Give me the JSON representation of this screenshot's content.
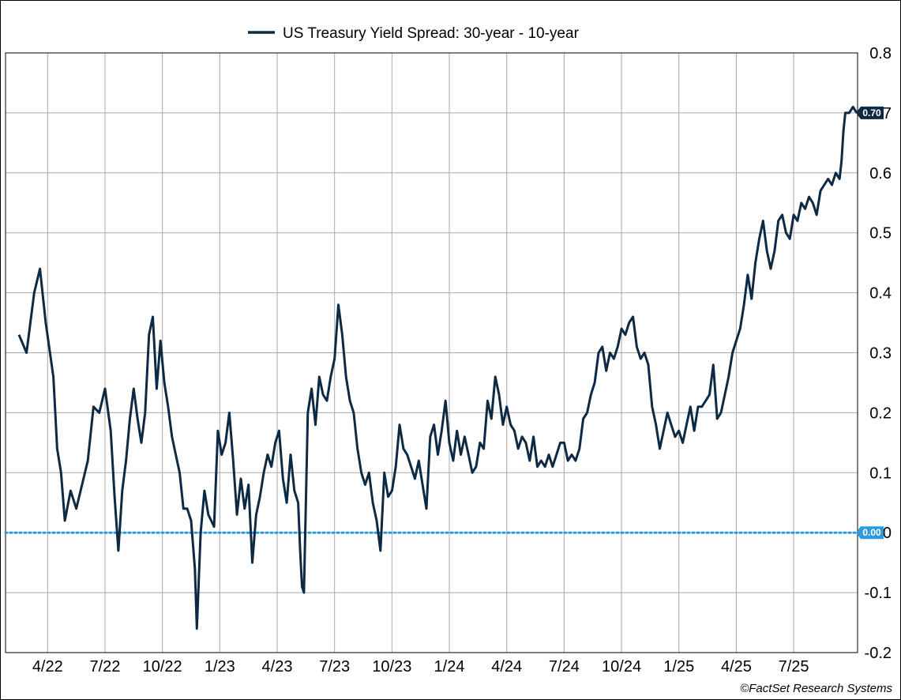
{
  "chart_data": {
    "type": "line",
    "title": "",
    "legend": {
      "label": "US Treasury Yield Spread: 30-year - 10-year",
      "position": "top-center"
    },
    "xlabel": "",
    "ylabel": "",
    "x_ticks": [
      "4/22",
      "7/22",
      "10/22",
      "1/23",
      "4/23",
      "7/23",
      "10/23",
      "1/24",
      "4/24",
      "7/24",
      "10/24",
      "1/25",
      "4/25",
      "7/25"
    ],
    "y_ticks": [
      "0.8",
      "0.7",
      "0.6",
      "0.5",
      "0.4",
      "0.3",
      "0.2",
      "0.1",
      "0",
      "-0.1",
      "-0.2"
    ],
    "ylim": [
      -0.2,
      0.8
    ],
    "grid": true,
    "series": [
      {
        "name": "US Treasury Yield Spread: 30-year - 10-year",
        "color": "#0d2a45",
        "points": [
          [
            0.0,
            0.33
          ],
          [
            0.2,
            0.3
          ],
          [
            0.4,
            0.4
          ],
          [
            0.55,
            0.44
          ],
          [
            0.7,
            0.35
          ],
          [
            0.9,
            0.26
          ],
          [
            1.0,
            0.14
          ],
          [
            1.1,
            0.1
          ],
          [
            1.2,
            0.02
          ],
          [
            1.35,
            0.07
          ],
          [
            1.5,
            0.04
          ],
          [
            1.65,
            0.08
          ],
          [
            1.8,
            0.12
          ],
          [
            1.95,
            0.21
          ],
          [
            2.1,
            0.2
          ],
          [
            2.25,
            0.24
          ],
          [
            2.4,
            0.17
          ],
          [
            2.5,
            0.06
          ],
          [
            2.6,
            -0.03
          ],
          [
            2.7,
            0.07
          ],
          [
            2.8,
            0.12
          ],
          [
            2.9,
            0.19
          ],
          [
            3.0,
            0.24
          ],
          [
            3.1,
            0.19
          ],
          [
            3.2,
            0.15
          ],
          [
            3.3,
            0.2
          ],
          [
            3.4,
            0.33
          ],
          [
            3.5,
            0.36
          ],
          [
            3.6,
            0.24
          ],
          [
            3.7,
            0.32
          ],
          [
            3.8,
            0.25
          ],
          [
            3.9,
            0.21
          ],
          [
            4.0,
            0.16
          ],
          [
            4.1,
            0.13
          ],
          [
            4.2,
            0.1
          ],
          [
            4.3,
            0.04
          ],
          [
            4.4,
            0.04
          ],
          [
            4.5,
            0.02
          ],
          [
            4.6,
            -0.06
          ],
          [
            4.65,
            -0.16
          ],
          [
            4.75,
            0.0
          ],
          [
            4.85,
            0.07
          ],
          [
            4.95,
            0.03
          ],
          [
            5.1,
            0.01
          ],
          [
            5.2,
            0.17
          ],
          [
            5.3,
            0.13
          ],
          [
            5.4,
            0.15
          ],
          [
            5.5,
            0.2
          ],
          [
            5.6,
            0.12
          ],
          [
            5.7,
            0.03
          ],
          [
            5.8,
            0.09
          ],
          [
            5.9,
            0.04
          ],
          [
            6.0,
            0.08
          ],
          [
            6.1,
            -0.05
          ],
          [
            6.2,
            0.03
          ],
          [
            6.3,
            0.06
          ],
          [
            6.4,
            0.1
          ],
          [
            6.5,
            0.13
          ],
          [
            6.6,
            0.11
          ],
          [
            6.7,
            0.15
          ],
          [
            6.8,
            0.17
          ],
          [
            6.9,
            0.09
          ],
          [
            7.0,
            0.05
          ],
          [
            7.1,
            0.13
          ],
          [
            7.2,
            0.07
          ],
          [
            7.3,
            0.05
          ],
          [
            7.35,
            -0.03
          ],
          [
            7.4,
            -0.09
          ],
          [
            7.45,
            -0.1
          ],
          [
            7.55,
            0.2
          ],
          [
            7.65,
            0.24
          ],
          [
            7.75,
            0.18
          ],
          [
            7.85,
            0.26
          ],
          [
            7.95,
            0.23
          ],
          [
            8.05,
            0.22
          ],
          [
            8.15,
            0.26
          ],
          [
            8.25,
            0.29
          ],
          [
            8.35,
            0.38
          ],
          [
            8.45,
            0.33
          ],
          [
            8.55,
            0.26
          ],
          [
            8.65,
            0.22
          ],
          [
            8.75,
            0.2
          ],
          [
            8.85,
            0.14
          ],
          [
            8.95,
            0.1
          ],
          [
            9.05,
            0.08
          ],
          [
            9.15,
            0.1
          ],
          [
            9.25,
            0.05
          ],
          [
            9.35,
            0.02
          ],
          [
            9.45,
            -0.03
          ],
          [
            9.55,
            0.1
          ],
          [
            9.65,
            0.06
          ],
          [
            9.75,
            0.07
          ],
          [
            9.85,
            0.11
          ],
          [
            9.95,
            0.18
          ],
          [
            10.05,
            0.14
          ],
          [
            10.15,
            0.13
          ],
          [
            10.25,
            0.11
          ],
          [
            10.35,
            0.09
          ],
          [
            10.45,
            0.12
          ],
          [
            10.55,
            0.08
          ],
          [
            10.65,
            0.04
          ],
          [
            10.75,
            0.16
          ],
          [
            10.85,
            0.18
          ],
          [
            10.95,
            0.13
          ],
          [
            11.05,
            0.17
          ],
          [
            11.15,
            0.22
          ],
          [
            11.25,
            0.15
          ],
          [
            11.35,
            0.12
          ],
          [
            11.45,
            0.17
          ],
          [
            11.55,
            0.13
          ],
          [
            11.65,
            0.16
          ],
          [
            11.75,
            0.13
          ],
          [
            11.85,
            0.1
          ],
          [
            11.95,
            0.11
          ],
          [
            12.05,
            0.15
          ],
          [
            12.15,
            0.14
          ],
          [
            12.25,
            0.22
          ],
          [
            12.35,
            0.19
          ],
          [
            12.45,
            0.26
          ],
          [
            12.55,
            0.23
          ],
          [
            12.65,
            0.18
          ],
          [
            12.75,
            0.21
          ],
          [
            12.85,
            0.18
          ],
          [
            12.95,
            0.17
          ],
          [
            13.05,
            0.14
          ],
          [
            13.15,
            0.16
          ],
          [
            13.25,
            0.15
          ],
          [
            13.35,
            0.12
          ],
          [
            13.45,
            0.16
          ],
          [
            13.55,
            0.11
          ],
          [
            13.65,
            0.12
          ],
          [
            13.75,
            0.11
          ],
          [
            13.85,
            0.13
          ],
          [
            13.95,
            0.11
          ],
          [
            14.05,
            0.13
          ],
          [
            14.15,
            0.15
          ],
          [
            14.25,
            0.15
          ],
          [
            14.35,
            0.12
          ],
          [
            14.45,
            0.13
          ],
          [
            14.55,
            0.12
          ],
          [
            14.65,
            0.14
          ],
          [
            14.75,
            0.19
          ],
          [
            14.85,
            0.2
          ],
          [
            14.95,
            0.23
          ],
          [
            15.05,
            0.25
          ],
          [
            15.15,
            0.3
          ],
          [
            15.25,
            0.31
          ],
          [
            15.35,
            0.27
          ],
          [
            15.45,
            0.3
          ],
          [
            15.55,
            0.29
          ],
          [
            15.65,
            0.31
          ],
          [
            15.75,
            0.34
          ],
          [
            15.85,
            0.33
          ],
          [
            15.95,
            0.35
          ],
          [
            16.05,
            0.36
          ],
          [
            16.15,
            0.31
          ],
          [
            16.25,
            0.29
          ],
          [
            16.35,
            0.3
          ],
          [
            16.45,
            0.28
          ],
          [
            16.55,
            0.21
          ],
          [
            16.65,
            0.18
          ],
          [
            16.75,
            0.14
          ],
          [
            16.85,
            0.17
          ],
          [
            16.95,
            0.2
          ],
          [
            17.05,
            0.18
          ],
          [
            17.15,
            0.16
          ],
          [
            17.25,
            0.17
          ],
          [
            17.35,
            0.15
          ],
          [
            17.45,
            0.18
          ],
          [
            17.55,
            0.21
          ],
          [
            17.65,
            0.17
          ],
          [
            17.75,
            0.21
          ],
          [
            17.85,
            0.21
          ],
          [
            17.95,
            0.22
          ],
          [
            18.05,
            0.23
          ],
          [
            18.15,
            0.28
          ],
          [
            18.25,
            0.19
          ],
          [
            18.35,
            0.2
          ],
          [
            18.45,
            0.23
          ],
          [
            18.55,
            0.26
          ],
          [
            18.65,
            0.3
          ],
          [
            18.75,
            0.32
          ],
          [
            18.85,
            0.34
          ],
          [
            18.95,
            0.38
          ],
          [
            19.05,
            0.43
          ],
          [
            19.15,
            0.39
          ],
          [
            19.25,
            0.45
          ],
          [
            19.35,
            0.49
          ],
          [
            19.45,
            0.52
          ],
          [
            19.55,
            0.47
          ],
          [
            19.65,
            0.44
          ],
          [
            19.75,
            0.47
          ],
          [
            19.85,
            0.52
          ],
          [
            19.95,
            0.53
          ],
          [
            20.05,
            0.5
          ],
          [
            20.15,
            0.49
          ],
          [
            20.25,
            0.53
          ],
          [
            20.35,
            0.52
          ],
          [
            20.45,
            0.55
          ],
          [
            20.55,
            0.54
          ],
          [
            20.65,
            0.56
          ],
          [
            20.75,
            0.55
          ],
          [
            20.85,
            0.53
          ],
          [
            20.95,
            0.57
          ],
          [
            21.05,
            0.58
          ],
          [
            21.15,
            0.59
          ],
          [
            21.25,
            0.58
          ],
          [
            21.35,
            0.6
          ],
          [
            21.45,
            0.59
          ],
          [
            21.5,
            0.62
          ],
          [
            21.55,
            0.67
          ],
          [
            21.6,
            0.7
          ],
          [
            21.7,
            0.7
          ],
          [
            21.8,
            0.71
          ],
          [
            21.9,
            0.7
          ]
        ]
      }
    ],
    "x_domain": [
      -0.35,
      21.92
    ],
    "value_labels": [
      {
        "text": "0.70",
        "value": 0.7,
        "color": "#0d2a45"
      },
      {
        "text": "0.00",
        "value": 0.0,
        "color": "#2b9be0"
      }
    ],
    "reference_line": {
      "value": 0.0,
      "color": "#2b9be0",
      "style": "dotted"
    }
  },
  "credit": "©FactSet Research Systems"
}
